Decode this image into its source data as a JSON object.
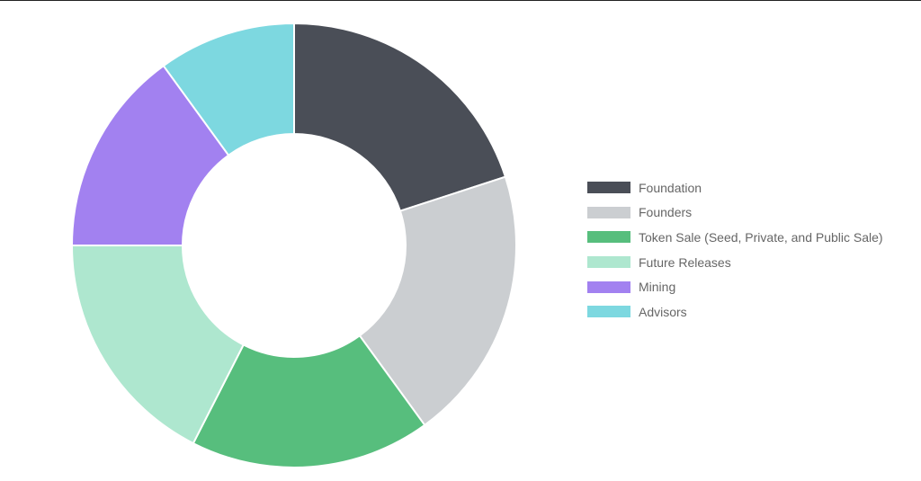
{
  "chart_data": {
    "type": "pie",
    "variant": "doughnut",
    "title": "",
    "categories": [
      "Foundation",
      "Founders",
      "Token Sale (Seed, Private, and Public Sale)",
      "Future Releases",
      "Mining",
      "Advisors"
    ],
    "values": [
      20,
      20,
      17.5,
      17.5,
      15,
      10
    ],
    "colors": [
      "#4a4e57",
      "#cbced1",
      "#57be7d",
      "#aee7cf",
      "#a281f0",
      "#7dd8e0"
    ],
    "legend_position": "right"
  }
}
